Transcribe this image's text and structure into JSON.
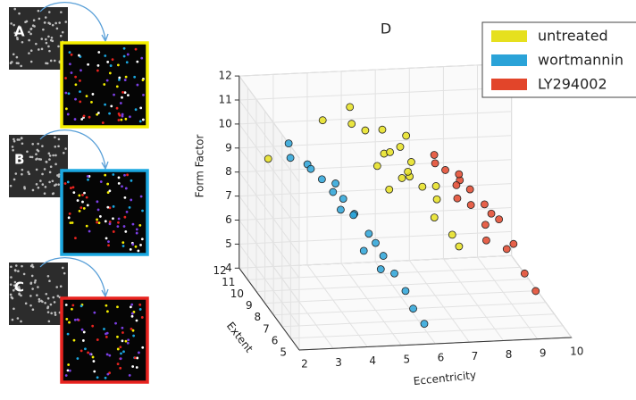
{
  "panels": [
    {
      "label": "A",
      "color": "#f5ef00"
    },
    {
      "label": "B",
      "color": "#1aa7e0"
    },
    {
      "label": "C",
      "color": "#e8231f"
    }
  ],
  "chart_data": {
    "type": "scatter3d",
    "title": "D",
    "xlabel": "Eccentricity",
    "ylabel": "Extent",
    "zlabel": "Form Factor",
    "xlim": [
      2,
      10
    ],
    "xticks": [
      2,
      3,
      4,
      5,
      6,
      7,
      8,
      9,
      10
    ],
    "ylim": [
      5,
      12
    ],
    "yticks": [
      5,
      6,
      7,
      8,
      9,
      10,
      11,
      12
    ],
    "zlim": [
      4,
      12
    ],
    "zticks": [
      4,
      5,
      6,
      7,
      8,
      9,
      10,
      11,
      12
    ],
    "grid": true,
    "legend": "upper right",
    "series": [
      {
        "name": "untreated",
        "color": "#e6e01e",
        "x": [
          5.2,
          5.5,
          5.8,
          6.0,
          6.2,
          6.5,
          5.0,
          5.7,
          6.3,
          6.8,
          5.4,
          6.1,
          6.6,
          7.0,
          4.8,
          5.9,
          6.4,
          5.3,
          6.9,
          2.6,
          4.2,
          7.2
        ],
        "y": [
          10,
          9,
          9.5,
          8,
          9,
          8.5,
          11,
          10,
          9,
          8,
          8,
          9.5,
          7.5,
          7,
          10,
          8.5,
          10,
          9,
          8.5,
          11,
          11,
          7
        ],
        "z": [
          10.5,
          10,
          9.8,
          9.5,
          9.2,
          8.8,
          11,
          10.5,
          9.6,
          8.5,
          9,
          10,
          8,
          7.5,
          10.8,
          9.2,
          10.2,
          9.5,
          8.8,
          9,
          10.5,
          7
        ]
      },
      {
        "name": "wortmannin",
        "color": "#2aa3d8",
        "x": [
          3.0,
          3.5,
          3.8,
          4.0,
          4.3,
          4.5,
          4.8,
          5.0,
          5.3,
          5.5,
          3.2,
          4.1,
          4.6,
          5.1,
          5.6,
          3.6,
          4.4,
          4.9,
          5.8,
          4.2
        ],
        "y": [
          10,
          10,
          9.5,
          9,
          9,
          8.5,
          8,
          8,
          7,
          6.5,
          11,
          8.5,
          9,
          7.5,
          6,
          10,
          7,
          7,
          5.5,
          9.5
        ],
        "z": [
          9.5,
          9.2,
          8.8,
          8.5,
          8.2,
          7.8,
          7.2,
          6.8,
          6,
          5.5,
          9.6,
          8,
          7.5,
          6.5,
          5,
          9,
          7,
          6.2,
          4.6,
          8.6
        ]
      },
      {
        "name": "LY294002",
        "color": "#e2452a",
        "x": [
          7.0,
          7.3,
          7.6,
          7.9,
          8.2,
          8.5,
          7.4,
          7.8,
          8.1,
          8.8,
          9.2,
          7.1,
          7.7,
          8.4,
          9.0,
          8.0,
          7.5,
          8.6
        ],
        "y": [
          9,
          9,
          8.5,
          8.5,
          8,
          7.5,
          8,
          8,
          7.5,
          7,
          6,
          9.5,
          9,
          8,
          6.5,
          7,
          8.5,
          7
        ],
        "z": [
          9.5,
          9.2,
          9,
          8.6,
          8.2,
          7.8,
          8.5,
          8.2,
          7.6,
          7,
          5.5,
          9.6,
          9,
          7.8,
          6,
          7.2,
          8.8,
          6.8
        ]
      }
    ]
  }
}
